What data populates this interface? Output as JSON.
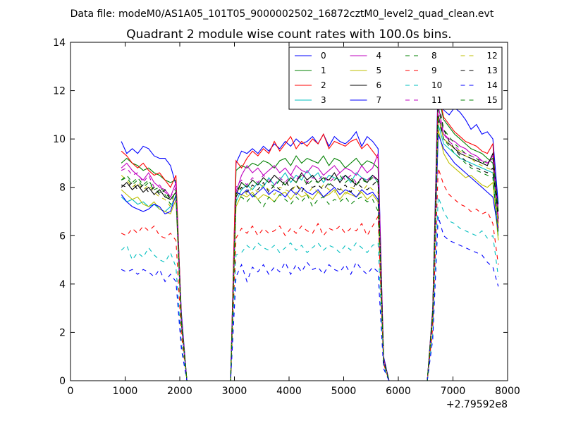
{
  "suptitle": "Data file: modeM0/AS1A05_101T05_9000002502_16872cztM0_level2_quad_clean.evt",
  "chart_data": {
    "type": "line",
    "title": "Quadrant 2 module wise count rates with 100.0s bins.",
    "xlabel": "",
    "ylabel": "",
    "x_offset_label": "+2.79592e8",
    "xlim": [
      0,
      8000
    ],
    "ylim": [
      0,
      14
    ],
    "xticks": [
      0,
      1000,
      2000,
      3000,
      4000,
      5000,
      6000,
      7000,
      8000
    ],
    "yticks": [
      0,
      2,
      4,
      6,
      8,
      10,
      12,
      14
    ],
    "legend_position": "top-right",
    "x": [
      930,
      1030,
      1130,
      1230,
      1330,
      1430,
      1530,
      1630,
      1730,
      1830,
      1930,
      2030,
      2130,
      2230,
      2330,
      2430,
      2530,
      2630,
      2730,
      2830,
      2930,
      3030,
      3130,
      3230,
      3330,
      3430,
      3530,
      3630,
      3730,
      3830,
      3930,
      4030,
      4130,
      4230,
      4330,
      4430,
      4530,
      4630,
      4730,
      4830,
      4930,
      5030,
      5130,
      5230,
      5330,
      5430,
      5530,
      5630,
      5730,
      5830,
      5930,
      6030,
      6130,
      6230,
      6330,
      6430,
      6530,
      6630,
      6730,
      6830,
      6930,
      7030,
      7130,
      7230,
      7330,
      7430,
      7530,
      7630,
      7730,
      7830
    ],
    "series": [
      {
        "name": "0",
        "color": "#0000ff",
        "dash": "solid",
        "values": [
          9.9,
          9.4,
          9.6,
          9.4,
          9.7,
          9.6,
          9.3,
          9.2,
          9.2,
          8.9,
          8.1,
          2.8,
          0,
          0,
          0,
          0,
          0,
          0,
          0,
          0,
          0,
          9.0,
          9.5,
          9.4,
          9.6,
          9.4,
          9.7,
          9.5,
          9.8,
          9.6,
          9.9,
          9.7,
          10.0,
          9.8,
          9.9,
          10.1,
          9.8,
          10.2,
          9.7,
          10.1,
          9.9,
          9.8,
          10.0,
          10.3,
          9.7,
          10.1,
          9.9,
          9.6,
          1.0,
          0,
          0,
          0,
          0,
          0,
          0,
          0,
          0,
          3.0,
          12.6,
          11.2,
          11.0,
          11.3,
          11.1,
          10.8,
          10.4,
          10.6,
          10.2,
          10.3,
          10.0,
          7.3
        ]
      },
      {
        "name": "1",
        "color": "#008000",
        "dash": "solid",
        "values": [
          9.0,
          9.2,
          9.0,
          8.9,
          8.7,
          8.8,
          8.6,
          8.5,
          8.3,
          8.2,
          8.3,
          2.6,
          0,
          0,
          0,
          0,
          0,
          0,
          0,
          0,
          0,
          8.7,
          8.9,
          8.8,
          9.0,
          8.9,
          9.1,
          9.0,
          8.8,
          9.1,
          9.2,
          8.9,
          9.3,
          9.0,
          9.2,
          9.1,
          9.0,
          9.3,
          8.9,
          9.2,
          9.1,
          8.8,
          9.0,
          9.2,
          8.9,
          9.1,
          9.0,
          8.8,
          0.9,
          0,
          0,
          0,
          0,
          0,
          0,
          0,
          0,
          2.9,
          11.8,
          10.8,
          10.5,
          10.2,
          10.0,
          9.8,
          9.6,
          9.5,
          9.4,
          9.2,
          9.0,
          6.5
        ]
      },
      {
        "name": "2",
        "color": "#ff0000",
        "dash": "solid",
        "values": [
          9.5,
          9.3,
          9.0,
          8.8,
          9.0,
          8.7,
          8.5,
          8.6,
          8.3,
          8.0,
          8.5,
          2.6,
          0,
          0,
          0,
          0,
          0,
          0,
          0,
          0,
          0,
          9.1,
          8.8,
          9.2,
          9.5,
          9.3,
          9.6,
          9.4,
          9.9,
          9.5,
          9.8,
          10.1,
          9.6,
          9.9,
          9.7,
          10.0,
          9.8,
          10.2,
          9.6,
          9.9,
          9.8,
          9.7,
          9.9,
          10.0,
          9.6,
          9.8,
          9.5,
          9.2,
          0.9,
          0,
          0,
          0,
          0,
          0,
          0,
          0,
          0,
          2.9,
          12.0,
          10.9,
          10.6,
          10.3,
          10.1,
          9.9,
          9.8,
          9.7,
          9.5,
          9.4,
          9.8,
          6.3
        ]
      },
      {
        "name": "3",
        "color": "#00bfbf",
        "dash": "solid",
        "values": [
          7.6,
          7.4,
          7.5,
          7.3,
          7.4,
          7.2,
          7.3,
          7.1,
          7.0,
          7.2,
          7.6,
          2.4,
          0,
          0,
          0,
          0,
          0,
          0,
          0,
          0,
          0,
          7.4,
          7.9,
          8.1,
          7.9,
          8.2,
          8.0,
          8.4,
          8.1,
          8.3,
          8.6,
          8.2,
          8.5,
          8.3,
          8.7,
          8.4,
          8.6,
          8.2,
          8.5,
          8.4,
          8.3,
          8.5,
          8.2,
          8.6,
          8.4,
          8.3,
          8.5,
          8.2,
          0.8,
          0,
          0,
          0,
          0,
          0,
          0,
          0,
          0,
          2.7,
          10.6,
          9.8,
          9.6,
          9.4,
          9.2,
          9.1,
          9.0,
          8.9,
          8.8,
          8.7,
          8.6,
          6.0
        ]
      },
      {
        "name": "4",
        "color": "#bf00bf",
        "dash": "solid",
        "values": [
          8.8,
          9.0,
          8.7,
          8.5,
          8.3,
          8.6,
          8.2,
          8.0,
          7.9,
          7.6,
          8.2,
          2.5,
          0,
          0,
          0,
          0,
          0,
          0,
          0,
          0,
          0,
          7.8,
          8.5,
          8.9,
          8.6,
          8.8,
          8.5,
          8.7,
          8.9,
          8.6,
          8.8,
          8.5,
          8.9,
          8.7,
          8.6,
          8.9,
          8.8,
          8.5,
          8.7,
          8.9,
          8.6,
          8.8,
          8.7,
          8.5,
          8.9,
          8.6,
          8.8,
          9.4,
          0.9,
          0,
          0,
          0,
          0,
          0,
          0,
          0,
          0,
          2.8,
          11.4,
          10.2,
          10.0,
          9.9,
          9.7,
          9.6,
          9.4,
          9.3,
          9.1,
          9.0,
          9.2,
          6.6
        ]
      },
      {
        "name": "5",
        "color": "#bfbf00",
        "dash": "solid",
        "values": [
          7.9,
          7.7,
          7.5,
          7.6,
          7.3,
          7.2,
          7.4,
          7.1,
          7.0,
          6.9,
          7.5,
          2.3,
          0,
          0,
          0,
          0,
          0,
          0,
          0,
          0,
          0,
          7.2,
          7.7,
          7.6,
          7.8,
          7.5,
          7.7,
          7.6,
          7.4,
          7.7,
          7.8,
          7.5,
          7.8,
          7.6,
          7.7,
          7.5,
          7.8,
          7.6,
          7.7,
          7.9,
          7.5,
          7.8,
          7.7,
          7.6,
          7.8,
          7.5,
          7.7,
          7.4,
          0.8,
          0,
          0,
          0,
          0,
          0,
          0,
          0,
          0,
          2.6,
          10.4,
          9.4,
          9.0,
          8.8,
          8.6,
          8.4,
          8.5,
          8.3,
          8.1,
          8.0,
          8.2,
          5.8
        ]
      },
      {
        "name": "6",
        "color": "#000000",
        "dash": "solid",
        "values": [
          8.0,
          8.2,
          7.9,
          8.1,
          7.8,
          8.0,
          7.7,
          7.9,
          7.6,
          7.5,
          7.8,
          2.4,
          0,
          0,
          0,
          0,
          0,
          0,
          0,
          0,
          0,
          7.7,
          8.2,
          8.0,
          8.3,
          8.1,
          8.4,
          8.2,
          8.5,
          8.3,
          8.1,
          8.4,
          8.2,
          8.6,
          8.3,
          8.5,
          8.2,
          8.4,
          8.3,
          8.6,
          8.2,
          8.5,
          8.3,
          8.1,
          8.4,
          8.2,
          8.5,
          8.3,
          0.9,
          0,
          0,
          0,
          0,
          0,
          0,
          0,
          0,
          2.8,
          11.0,
          10.0,
          9.8,
          9.6,
          9.4,
          9.3,
          9.2,
          9.1,
          9.0,
          8.9,
          9.4,
          7.0
        ]
      },
      {
        "name": "7",
        "color": "#0000ff",
        "dash": "solid",
        "values": [
          7.7,
          7.4,
          7.2,
          7.1,
          7.0,
          7.1,
          7.3,
          7.2,
          6.9,
          7.0,
          7.7,
          2.4,
          0,
          0,
          0,
          0,
          0,
          0,
          0,
          0,
          0,
          7.8,
          7.7,
          7.9,
          7.6,
          7.8,
          8.0,
          7.7,
          7.9,
          7.8,
          7.6,
          7.9,
          7.7,
          8.0,
          7.8,
          7.7,
          7.9,
          7.6,
          7.8,
          8.0,
          7.7,
          7.9,
          7.8,
          7.6,
          7.9,
          7.7,
          7.8,
          7.5,
          0.8,
          0,
          0,
          0,
          0,
          0,
          0,
          0,
          0,
          2.7,
          10.2,
          9.6,
          9.3,
          9.0,
          8.8,
          8.6,
          8.4,
          8.2,
          8.0,
          7.8,
          7.6,
          6.2
        ]
      },
      {
        "name": "8",
        "color": "#008000",
        "dash": "dashed",
        "values": [
          8.3,
          8.4,
          8.1,
          8.3,
          8.0,
          8.2,
          7.9,
          7.8,
          7.7,
          7.3,
          7.9,
          2.4,
          0,
          0,
          0,
          0,
          0,
          0,
          0,
          0,
          0,
          7.5,
          7.6,
          7.4,
          7.7,
          7.5,
          7.2,
          7.6,
          7.4,
          7.7,
          7.5,
          7.3,
          7.6,
          7.4,
          7.7,
          7.2,
          7.5,
          7.6,
          7.3,
          7.5,
          7.4,
          7.6,
          7.3,
          7.5,
          7.6,
          7.4,
          7.5,
          7.0,
          0.8,
          0,
          0,
          0,
          0,
          0,
          0,
          0,
          0,
          2.6,
          10.8,
          10.0,
          9.7,
          9.4,
          9.2,
          9.0,
          8.8,
          8.7,
          8.6,
          8.5,
          8.4,
          6.0
        ]
      },
      {
        "name": "9",
        "color": "#ff0000",
        "dash": "dashed",
        "values": [
          6.1,
          6.0,
          6.3,
          6.1,
          6.4,
          6.2,
          6.4,
          6.0,
          5.9,
          6.1,
          5.8,
          1.9,
          0,
          0,
          0,
          0,
          0,
          0,
          0,
          0,
          0,
          5.9,
          6.3,
          6.1,
          6.4,
          6.0,
          6.3,
          6.1,
          6.2,
          6.4,
          6.0,
          6.3,
          6.1,
          6.4,
          6.2,
          6.1,
          6.5,
          6.0,
          6.3,
          6.2,
          6.4,
          6.1,
          6.3,
          6.2,
          6.5,
          6.0,
          6.4,
          6.8,
          0.7,
          0,
          0,
          0,
          0,
          0,
          0,
          0,
          0,
          2.2,
          8.8,
          8.1,
          7.7,
          7.5,
          7.3,
          7.2,
          7.0,
          7.1,
          6.9,
          7.0,
          6.5,
          4.8
        ]
      },
      {
        "name": "10",
        "color": "#00bfbf",
        "dash": "dashed",
        "values": [
          5.4,
          5.6,
          5.0,
          5.3,
          5.1,
          5.5,
          5.2,
          5.0,
          4.9,
          5.3,
          4.7,
          1.5,
          0,
          0,
          0,
          0,
          0,
          0,
          0,
          0,
          0,
          5.2,
          5.3,
          5.6,
          5.4,
          5.7,
          5.5,
          5.4,
          5.6,
          5.3,
          5.5,
          5.7,
          5.4,
          5.6,
          5.3,
          5.5,
          5.7,
          5.4,
          5.6,
          5.5,
          5.3,
          5.6,
          5.4,
          5.7,
          5.5,
          5.3,
          5.6,
          5.7,
          0.6,
          0,
          0,
          0,
          0,
          0,
          0,
          0,
          0,
          1.9,
          7.6,
          7.0,
          6.6,
          6.5,
          6.3,
          6.2,
          6.1,
          6.0,
          6.2,
          5.9,
          6.0,
          4.3
        ]
      },
      {
        "name": "11",
        "color": "#bf00bf",
        "dash": "dashed",
        "values": [
          8.7,
          8.8,
          8.5,
          8.6,
          8.2,
          8.5,
          8.0,
          8.1,
          7.8,
          7.6,
          8.0,
          2.5,
          0,
          0,
          0,
          0,
          0,
          0,
          0,
          0,
          0,
          8.0,
          8.3,
          8.1,
          8.4,
          8.2,
          8.5,
          8.3,
          8.1,
          8.4,
          8.2,
          8.5,
          8.3,
          8.6,
          8.2,
          8.4,
          8.3,
          8.5,
          8.2,
          8.4,
          8.6,
          8.3,
          8.5,
          8.2,
          8.4,
          8.3,
          8.5,
          8.2,
          0.9,
          0,
          0,
          0,
          0,
          0,
          0,
          0,
          0,
          2.8,
          11.0,
          10.2,
          9.9,
          9.7,
          9.5,
          9.4,
          9.3,
          9.2,
          9.1,
          9.0,
          9.3,
          6.8
        ]
      },
      {
        "name": "12",
        "color": "#bfbf00",
        "dash": "dashed",
        "values": [
          8.5,
          8.3,
          8.0,
          8.2,
          7.9,
          8.1,
          7.8,
          7.6,
          7.5,
          7.2,
          7.7,
          2.4,
          0,
          0,
          0,
          0,
          0,
          0,
          0,
          0,
          0,
          7.8,
          8.0,
          7.7,
          8.0,
          7.8,
          8.1,
          7.9,
          7.7,
          8.0,
          7.9,
          7.8,
          8.1,
          7.9,
          7.7,
          8.0,
          7.8,
          8.1,
          7.9,
          7.8,
          8.0,
          7.7,
          8.0,
          7.9,
          7.8,
          8.1,
          7.9,
          7.8,
          0.8,
          0,
          0,
          0,
          0,
          0,
          0,
          0,
          0,
          2.7,
          10.9,
          10.0,
          9.8,
          9.6,
          9.5,
          9.3,
          9.2,
          9.0,
          8.9,
          8.8,
          8.7,
          6.4
        ]
      },
      {
        "name": "13",
        "color": "#000000",
        "dash": "dashed",
        "values": [
          8.1,
          8.0,
          8.2,
          7.9,
          8.1,
          7.8,
          8.0,
          7.7,
          7.9,
          7.5,
          7.8,
          2.4,
          0,
          0,
          0,
          0,
          0,
          0,
          0,
          0,
          0,
          7.6,
          8.0,
          7.8,
          8.1,
          7.9,
          8.2,
          7.8,
          8.1,
          7.9,
          8.3,
          7.9,
          8.1,
          7.8,
          8.2,
          8.0,
          8.1,
          7.9,
          8.2,
          8.0,
          7.9,
          8.1,
          7.8,
          8.2,
          8.0,
          7.9,
          8.1,
          8.3,
          0.8,
          0,
          0,
          0,
          0,
          0,
          0,
          0,
          0,
          2.8,
          11.6,
          10.4,
          9.9,
          9.6,
          9.3,
          9.1,
          8.9,
          8.8,
          8.7,
          8.6,
          8.8,
          6.7
        ]
      },
      {
        "name": "14",
        "color": "#0000ff",
        "dash": "dashed",
        "values": [
          4.6,
          4.5,
          4.6,
          4.4,
          4.6,
          4.5,
          4.3,
          4.6,
          4.1,
          4.4,
          4.1,
          1.3,
          0,
          0,
          0,
          0,
          0,
          0,
          0,
          0,
          0,
          4.3,
          4.8,
          4.1,
          4.7,
          4.5,
          4.8,
          4.4,
          4.7,
          4.5,
          4.9,
          4.4,
          4.8,
          4.5,
          4.9,
          4.6,
          4.7,
          4.4,
          4.8,
          4.6,
          4.5,
          4.8,
          4.4,
          4.9,
          4.6,
          4.4,
          4.7,
          4.5,
          0.5,
          0,
          0,
          0,
          0,
          0,
          0,
          0,
          0,
          1.7,
          6.8,
          6.0,
          5.8,
          5.7,
          5.6,
          5.5,
          5.4,
          5.3,
          5.2,
          4.9,
          4.7,
          3.9
        ]
      },
      {
        "name": "15",
        "color": "#008000",
        "dash": "dashed",
        "values": [
          8.3,
          8.5,
          8.2,
          8.4,
          8.1,
          8.3,
          7.9,
          8.0,
          7.8,
          7.5,
          7.8,
          2.4,
          0,
          0,
          0,
          0,
          0,
          0,
          0,
          0,
          0,
          7.8,
          8.2,
          8.0,
          8.3,
          8.1,
          8.4,
          8.2,
          8.0,
          8.3,
          8.1,
          8.4,
          8.2,
          8.5,
          8.1,
          8.3,
          8.2,
          8.4,
          8.1,
          8.3,
          8.5,
          8.2,
          8.4,
          8.1,
          8.3,
          8.2,
          8.4,
          8.2,
          0.8,
          0,
          0,
          0,
          0,
          0,
          0,
          0,
          0,
          2.7,
          11.2,
          10.4,
          10.1,
          9.8,
          9.6,
          9.4,
          9.3,
          9.2,
          9.0,
          9.1,
          9.2,
          6.9
        ]
      }
    ]
  }
}
